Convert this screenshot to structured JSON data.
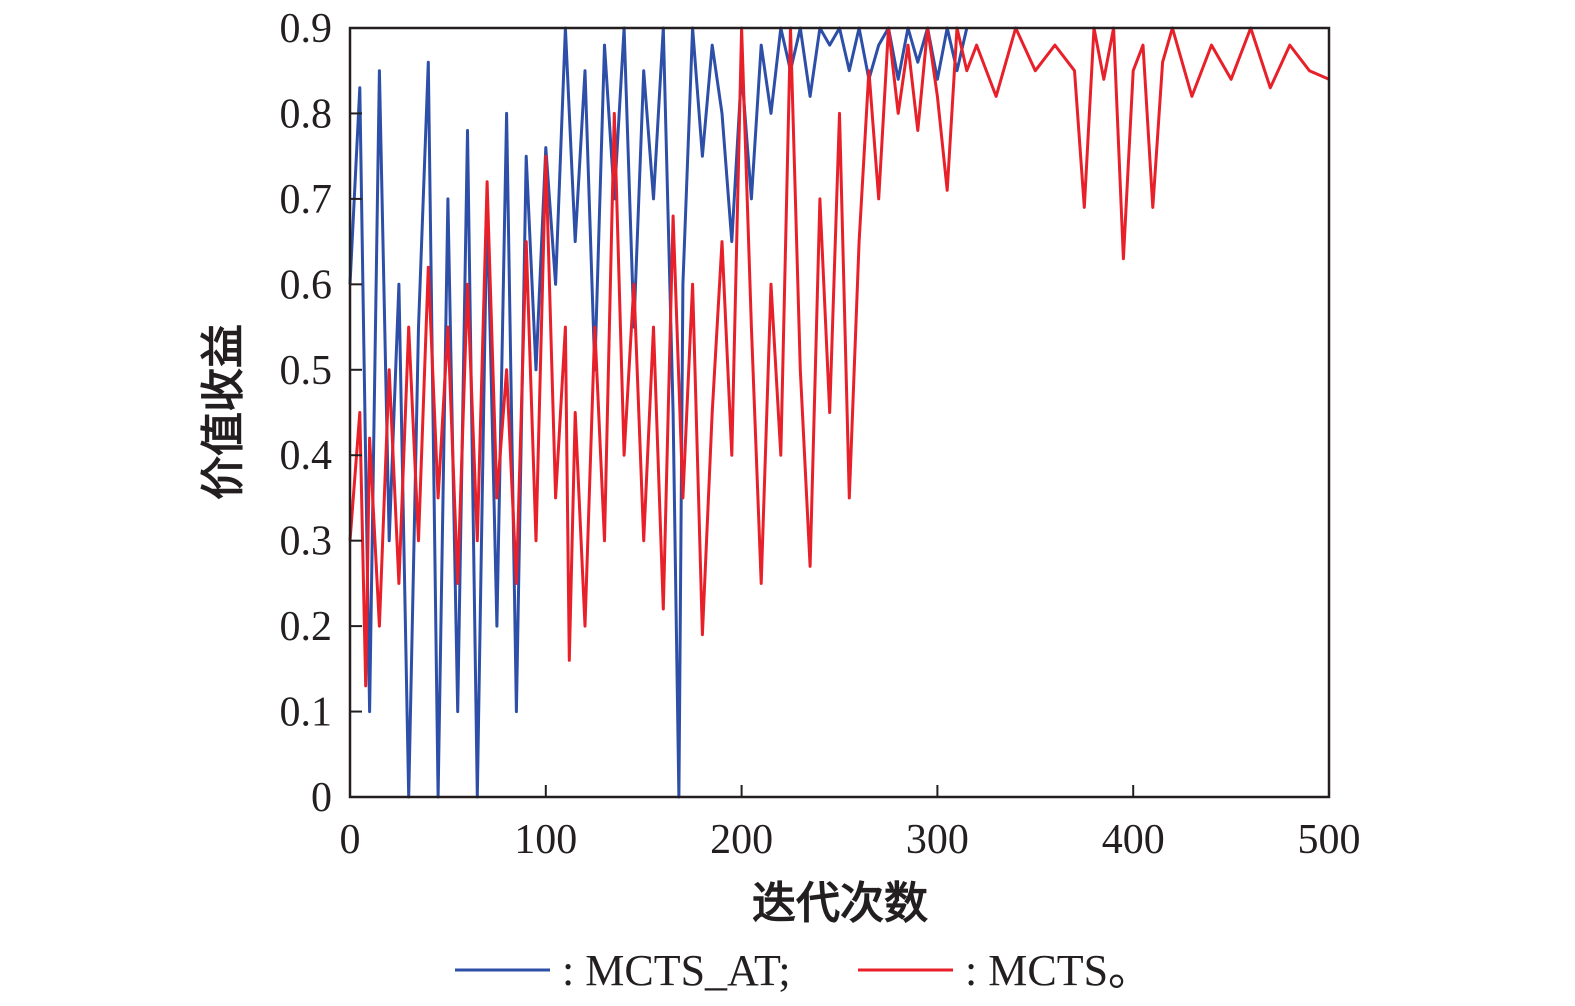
{
  "chart_data": {
    "type": "line",
    "title": "",
    "xlabel": "迭代次数",
    "ylabel": "价值收益",
    "xlim": [
      0,
      500
    ],
    "ylim": [
      0,
      0.9
    ],
    "xticks": [
      "0",
      "100",
      "200",
      "300",
      "400",
      "500"
    ],
    "xtick_values": [
      0,
      100,
      200,
      300,
      400,
      500
    ],
    "yticks": [
      "0",
      "0.1",
      "0.2",
      "0.3",
      "0.4",
      "0.5",
      "0.6",
      "0.7",
      "0.8",
      "0.9"
    ],
    "ytick_values": [
      0,
      0.1,
      0.2,
      0.3,
      0.4,
      0.5,
      0.6,
      0.7,
      0.8,
      0.9
    ],
    "grid": false,
    "legend_position": "bottom",
    "series": [
      {
        "name": "MCTS_AT",
        "legend_label": ": MCTS_AT;",
        "color": "#2e4fa8",
        "x": [
          0,
          5,
          10,
          15,
          20,
          25,
          30,
          35,
          40,
          45,
          50,
          55,
          60,
          65,
          70,
          75,
          80,
          85,
          90,
          95,
          100,
          105,
          110,
          115,
          120,
          125,
          130,
          135,
          140,
          145,
          150,
          155,
          160,
          165,
          168,
          170,
          175,
          180,
          185,
          190,
          195,
          200,
          205,
          210,
          215,
          220,
          225,
          230,
          235,
          240,
          245,
          250,
          255,
          260,
          265,
          270,
          275,
          280,
          285,
          290,
          295,
          300,
          305,
          310,
          315
        ],
        "y": [
          0.6,
          0.83,
          0.1,
          0.85,
          0.3,
          0.6,
          0,
          0.55,
          0.86,
          0,
          0.7,
          0.1,
          0.78,
          0,
          0.7,
          0.2,
          0.8,
          0.1,
          0.75,
          0.5,
          0.76,
          0.6,
          0.9,
          0.65,
          0.85,
          0.5,
          0.88,
          0.7,
          0.9,
          0.55,
          0.85,
          0.7,
          0.9,
          0.45,
          0,
          0.6,
          0.9,
          0.75,
          0.88,
          0.8,
          0.65,
          0.85,
          0.7,
          0.88,
          0.8,
          0.9,
          0.85,
          0.9,
          0.82,
          0.9,
          0.88,
          0.9,
          0.85,
          0.9,
          0.84,
          0.88,
          0.9,
          0.84,
          0.9,
          0.86,
          0.9,
          0.84,
          0.9,
          0.85,
          0.9
        ]
      },
      {
        "name": "MCTS",
        "legend_label": ": MCTS。",
        "color": "#e8202a",
        "x": [
          0,
          5,
          8,
          10,
          15,
          20,
          25,
          30,
          35,
          40,
          45,
          50,
          55,
          60,
          65,
          70,
          75,
          80,
          85,
          90,
          95,
          100,
          105,
          110,
          112,
          115,
          120,
          125,
          130,
          135,
          140,
          145,
          150,
          155,
          160,
          165,
          170,
          175,
          180,
          185,
          190,
          195,
          200,
          205,
          210,
          215,
          220,
          225,
          230,
          235,
          240,
          245,
          250,
          255,
          260,
          265,
          270,
          275,
          280,
          285,
          290,
          295,
          300,
          305,
          310,
          315,
          320,
          330,
          340,
          350,
          360,
          370,
          375,
          380,
          385,
          390,
          395,
          400,
          405,
          410,
          415,
          420,
          430,
          440,
          450,
          460,
          470,
          480,
          490,
          500
        ],
        "y": [
          0.3,
          0.45,
          0.13,
          0.42,
          0.2,
          0.5,
          0.25,
          0.55,
          0.3,
          0.62,
          0.35,
          0.55,
          0.25,
          0.6,
          0.3,
          0.72,
          0.35,
          0.5,
          0.25,
          0.65,
          0.3,
          0.75,
          0.35,
          0.55,
          0.16,
          0.45,
          0.2,
          0.55,
          0.3,
          0.8,
          0.4,
          0.6,
          0.3,
          0.55,
          0.22,
          0.68,
          0.35,
          0.6,
          0.19,
          0.45,
          0.65,
          0.4,
          0.9,
          0.55,
          0.25,
          0.6,
          0.4,
          0.9,
          0.5,
          0.27,
          0.7,
          0.45,
          0.8,
          0.35,
          0.65,
          0.85,
          0.7,
          0.9,
          0.8,
          0.88,
          0.78,
          0.9,
          0.82,
          0.71,
          0.9,
          0.85,
          0.88,
          0.82,
          0.9,
          0.85,
          0.88,
          0.85,
          0.69,
          0.9,
          0.84,
          0.9,
          0.63,
          0.85,
          0.88,
          0.69,
          0.86,
          0.9,
          0.82,
          0.88,
          0.84,
          0.9,
          0.83,
          0.88,
          0.85,
          0.84
        ]
      }
    ]
  }
}
